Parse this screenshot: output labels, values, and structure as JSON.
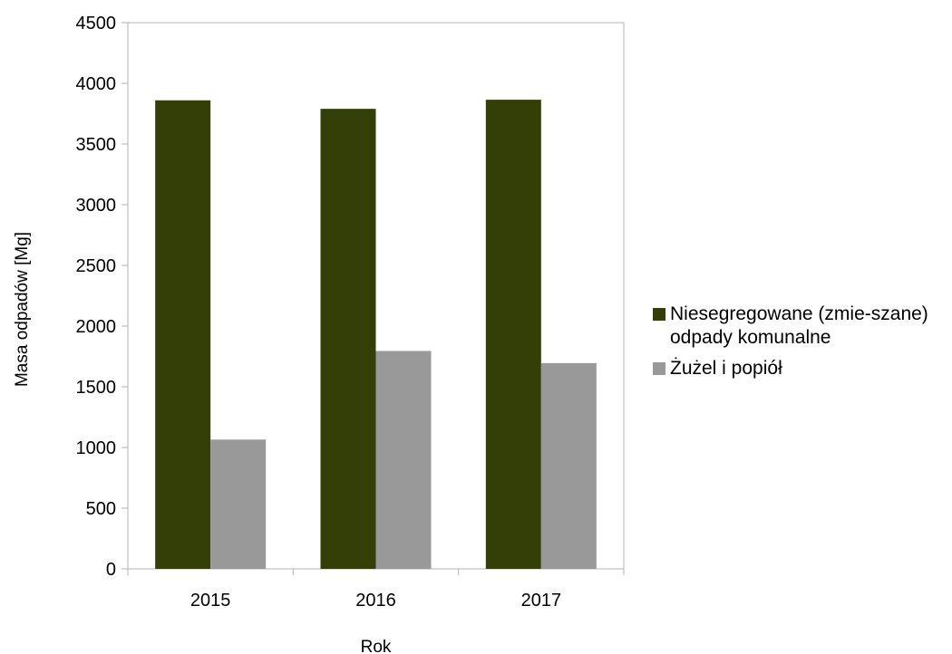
{
  "chart_data": {
    "type": "bar",
    "categories": [
      "2015",
      "2016",
      "2017"
    ],
    "series": [
      {
        "name": "Niesegregowane (zmieszane) odpady komunalne",
        "values": [
          3860,
          3790,
          3865
        ],
        "color": "#333f07"
      },
      {
        "name": "Żużel i popiół",
        "values": [
          1065,
          1795,
          1695
        ],
        "color": "#999999"
      }
    ],
    "xlabel": "Rok",
    "ylabel": "Masa odpadów  [Mg]",
    "ylim": [
      0,
      4500
    ],
    "yticks": [
      0,
      500,
      1000,
      1500,
      2000,
      2500,
      3000,
      3500,
      4000,
      4500
    ],
    "grid": false,
    "legend_position": "right"
  },
  "legend": {
    "items": [
      {
        "label": "Niesegregowane (zmie-szane) odpady komunalne",
        "color": "#333f07"
      },
      {
        "label": "Żużel i popiół",
        "color": "#999999"
      }
    ]
  }
}
